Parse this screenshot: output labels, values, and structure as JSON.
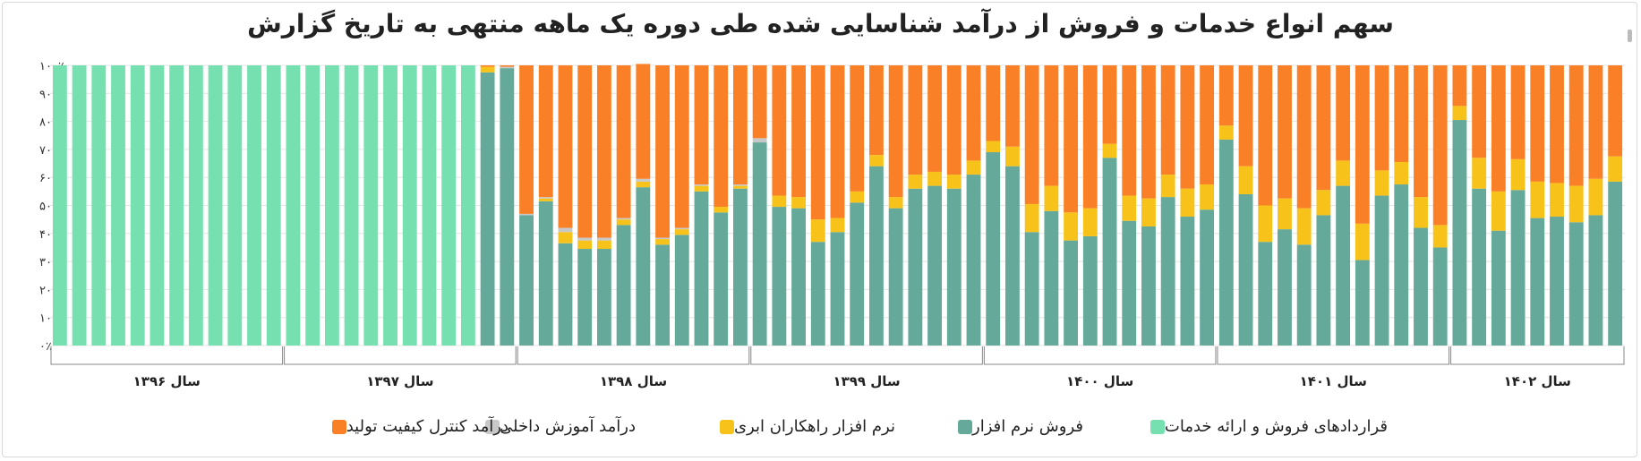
{
  "chart_data": {
    "type": "bar",
    "stacked": "percent",
    "title": "سهم انواع خدمات و فروش از درآمد شناسایی شده طی دوره یک ماهه منتهی به تاریخ گزارش",
    "yticks": [
      "۰٪",
      "۱۰٪",
      "۲۰٪",
      "۳۰٪",
      "۴۰٪",
      "۵۰٪",
      "۶۰٪",
      "۷۰٪",
      "۸۰٪",
      "۹۰٪",
      "۱۰۰٪"
    ],
    "ylim": [
      0,
      100
    ],
    "grid": true,
    "legend_position": "bottom",
    "groups": [
      {
        "label": "سال ۱۳۹۶",
        "count": 12
      },
      {
        "label": "سال ۱۳۹۷",
        "count": 12
      },
      {
        "label": "سال ۱۳۹۸",
        "count": 12
      },
      {
        "label": "سال ۱۳۹۹",
        "count": 12
      },
      {
        "label": "سال ۱۴۰۰",
        "count": 12
      },
      {
        "label": "سال ۱۴۰۱",
        "count": 12
      },
      {
        "label": "سال ۱۴۰۲",
        "count": 9
      }
    ],
    "series": [
      {
        "name": "قراردادهای فروش و ارائه خدمات",
        "color": "#77e0b0",
        "values": [
          100,
          100,
          100,
          100,
          100,
          100,
          100,
          100,
          100,
          100,
          100,
          100,
          100,
          100,
          100,
          100,
          100,
          100,
          100,
          100,
          100,
          100,
          0,
          0,
          0,
          0,
          0,
          0,
          0,
          0,
          0,
          0,
          0,
          0,
          0,
          0,
          0,
          0,
          0,
          0,
          0,
          0,
          0,
          0,
          0,
          0,
          0,
          0,
          0,
          0,
          0,
          0,
          0,
          0,
          0,
          0,
          0,
          0,
          0,
          0,
          0,
          0,
          0,
          0,
          0,
          0,
          0,
          0,
          0,
          0,
          0,
          0,
          0,
          0,
          0,
          0,
          0,
          0,
          0,
          0,
          0
        ]
      },
      {
        "name": "فروش نرم افزار",
        "color": "#64a99a",
        "values": [
          0,
          0,
          0,
          0,
          0,
          0,
          0,
          0,
          0,
          0,
          0,
          0,
          0,
          0,
          0,
          0,
          0,
          0,
          0,
          0,
          0,
          0,
          97.5,
          99,
          46.5,
          51.5,
          36.5,
          34.5,
          34.5,
          43,
          56.5,
          36,
          39.5,
          55,
          47.5,
          56,
          72.5,
          49.5,
          49,
          37,
          40.5,
          51,
          64,
          49,
          56,
          57,
          56,
          61,
          69,
          64,
          40.5,
          48,
          37.5,
          39,
          67,
          44.5,
          42.5,
          53,
          46,
          48.5,
          73.5,
          54,
          37,
          41.5,
          36,
          46.5,
          57,
          30.5,
          53.5,
          57.5,
          42,
          35,
          80.5,
          56,
          41,
          55.5,
          45.5,
          46,
          44,
          46.5,
          58.5
        ]
      },
      {
        "name": "نرم افزار راهکاران ابری",
        "color": "#f7c31a",
        "values": [
          0,
          0,
          0,
          0,
          0,
          0,
          0,
          0,
          0,
          0,
          0,
          0,
          0,
          0,
          0,
          0,
          0,
          0,
          0,
          0,
          0,
          0,
          2,
          0,
          0,
          1,
          4,
          3,
          3,
          2,
          2,
          2,
          2,
          2,
          2,
          1,
          0,
          4,
          4,
          8,
          5,
          4,
          4,
          4,
          5,
          5,
          5,
          5,
          4,
          7,
          10,
          9,
          10,
          10,
          5,
          9,
          10,
          8,
          10,
          9,
          5,
          10,
          13,
          11,
          13,
          9,
          9,
          13,
          9,
          8,
          11,
          8,
          5,
          11,
          14,
          11,
          13,
          12,
          13,
          13,
          9
        ]
      },
      {
        "name": "درآمد آموزش داخلی",
        "color": "#c8c8c8",
        "values": [
          0,
          0,
          0,
          0,
          0,
          0,
          0,
          0,
          0,
          0,
          0,
          0,
          0,
          0,
          0,
          0,
          0,
          0,
          0,
          0,
          0,
          0,
          0,
          0.5,
          0.5,
          0.5,
          1.5,
          1,
          1,
          0.5,
          1,
          0.5,
          0.5,
          0.5,
          0,
          0.5,
          1.5,
          0,
          0,
          0,
          0,
          0,
          0,
          0,
          0,
          0,
          0,
          0,
          0,
          0,
          0,
          0,
          0,
          0,
          0,
          0,
          0,
          0,
          0,
          0,
          0,
          0,
          0,
          0,
          0,
          0,
          0,
          0,
          0,
          0,
          0,
          0,
          0,
          0,
          0,
          0,
          0,
          0,
          0,
          0,
          0
        ]
      },
      {
        "name": "درآمد کنترل کیفیت تولید",
        "color": "#f98026",
        "values": [
          0,
          0,
          0,
          0,
          0,
          0,
          0,
          0,
          0,
          0,
          0,
          0,
          0,
          0,
          0,
          0,
          0,
          0,
          0,
          0,
          0,
          0,
          0.5,
          0.5,
          53,
          47,
          58,
          61.5,
          61.5,
          54.5,
          41,
          61.5,
          58,
          42.5,
          50.5,
          42.5,
          26,
          46.5,
          47,
          55,
          54.5,
          45,
          32,
          47,
          39,
          38,
          39,
          34,
          27,
          29,
          49.5,
          43,
          52.5,
          51,
          28,
          46.5,
          47.5,
          39,
          44,
          42.5,
          21.5,
          36,
          50,
          47.5,
          51,
          44.5,
          34,
          56.5,
          37.5,
          34.5,
          47,
          57,
          14.5,
          33,
          45,
          33.5,
          41.5,
          42,
          43,
          40.5,
          32.5
        ]
      }
    ]
  }
}
